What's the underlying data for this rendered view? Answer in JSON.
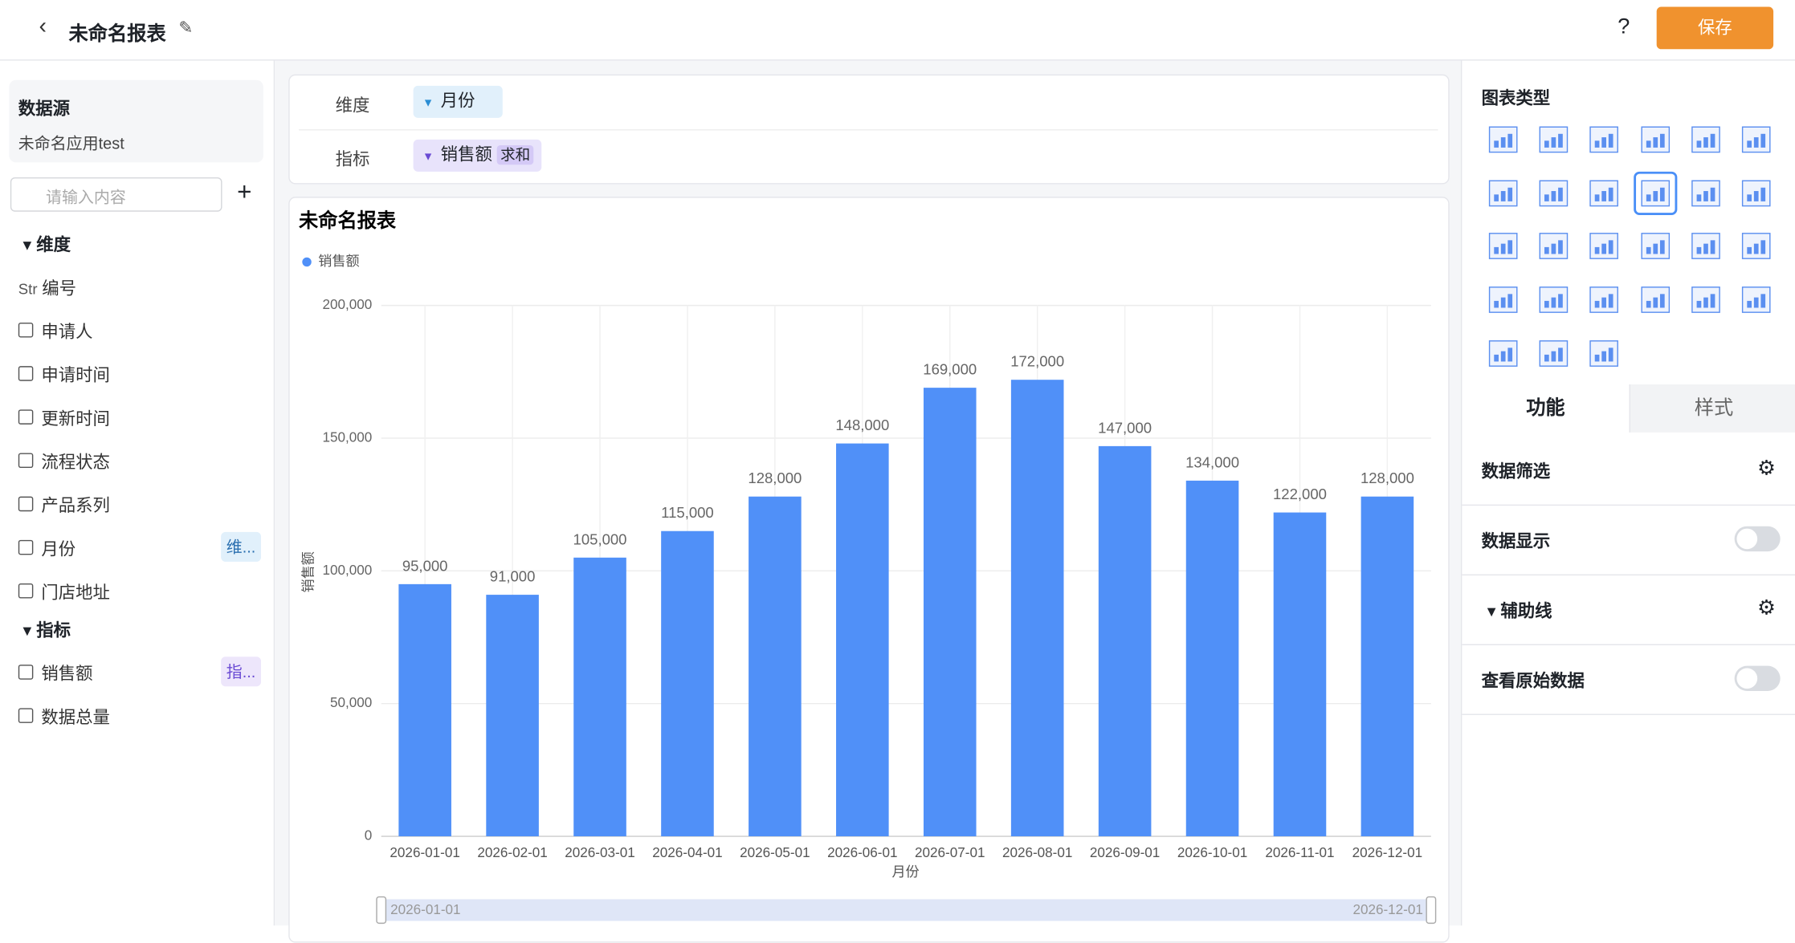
{
  "header": {
    "title": "未命名报表",
    "help": "?",
    "save": "保存"
  },
  "sidebar": {
    "source_label": "数据源",
    "source_name": "未命名应用test",
    "search_placeholder": "请输入内容",
    "dimension_header": "维度",
    "dimensions": [
      {
        "prefix": "Str",
        "label": "编号"
      },
      {
        "label": "申请人"
      },
      {
        "label": "申请时间"
      },
      {
        "label": "更新时间"
      },
      {
        "label": "流程状态"
      },
      {
        "label": "产品系列"
      },
      {
        "label": "月份",
        "tag": "维..."
      },
      {
        "label": "门店地址"
      }
    ],
    "metric_header": "指标",
    "metrics": [
      {
        "label": "销售额",
        "tag": "指..."
      },
      {
        "label": "数据总量"
      }
    ]
  },
  "config": {
    "dimension_label": "维度",
    "dimension_chip": "月份",
    "metric_label": "指标",
    "metric_chip": "销售额",
    "metric_agg": "求和"
  },
  "chart_data": {
    "type": "bar",
    "title": "未命名报表",
    "x_label": "月份",
    "y_label": "销售额",
    "categories": [
      "2026-01-01",
      "2026-02-01",
      "2026-03-01",
      "2026-04-01",
      "2026-05-01",
      "2026-06-01",
      "2026-07-01",
      "2026-08-01",
      "2026-09-01",
      "2026-10-01",
      "2026-11-01",
      "2026-12-01"
    ],
    "series": [
      {
        "name": "销售额",
        "color": "#5090f8",
        "values": [
          95000,
          91000,
          105000,
          115000,
          128000,
          148000,
          169000,
          172000,
          147000,
          134000,
          122000,
          128000
        ],
        "value_labels": [
          "95,000",
          "91,000",
          "105,000",
          "115,000",
          "128,000",
          "148,000",
          "169,000",
          "172,000",
          "147,000",
          "134,000",
          "122,000",
          "128,000"
        ]
      }
    ],
    "ylim": [
      0,
      200000
    ],
    "yticks": [
      0,
      {
        "value": 50000,
        "label": "50,000"
      },
      {
        "value": 100000,
        "label": "100,000"
      },
      {
        "value": 150000,
        "label": "150,000"
      },
      {
        "value": 200000,
        "label": "200,000"
      }
    ],
    "grid": true,
    "legend": "top-left",
    "zoom_start": "2026-01-01",
    "zoom_end": "2026-12-01"
  },
  "panel": {
    "chart_type_label": "图表类型",
    "tabs": [
      "功能",
      "样式"
    ],
    "rows": [
      "数据筛选",
      "数据显示",
      "辅助线",
      "查看原始数据"
    ]
  }
}
